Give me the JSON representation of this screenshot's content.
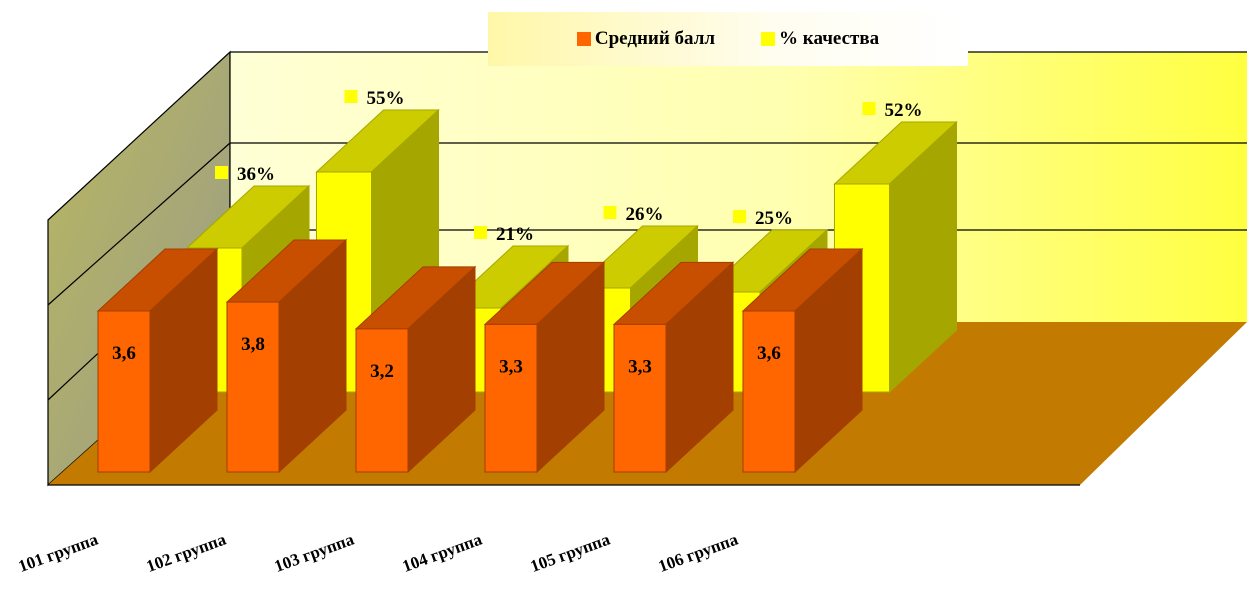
{
  "chart_data": {
    "type": "bar",
    "style": "3d-clustered",
    "categories": [
      "101 группа",
      "102 группа",
      "103 группа",
      "104 группа",
      "105 группа",
      "106 группа"
    ],
    "series": [
      {
        "name": "Средний балл",
        "values": [
          3.6,
          3.8,
          3.2,
          3.3,
          3.3,
          3.6
        ],
        "labels": [
          "3,6",
          "3,8",
          "3,2",
          "3,3",
          "3,3",
          "3,6"
        ],
        "color": "#ff6600"
      },
      {
        "name": "% качества",
        "values": [
          36,
          55,
          21,
          26,
          25,
          52
        ],
        "labels": [
          "36%",
          "55%",
          "21%",
          "26%",
          "25%",
          "52%"
        ],
        "color": "#ffff00"
      }
    ],
    "legend_position": "top",
    "grid": true,
    "title": "",
    "xlabel": "",
    "ylabel": ""
  },
  "colors": {
    "orange_front": "#ff6600",
    "orange_top": "#c84e00",
    "orange_side": "#a33f00",
    "yellow_front": "#ffff00",
    "yellow_top": "#cccc00",
    "yellow_side": "#a6a600",
    "floor": "#c27a00",
    "back_wall_left": "#ffffb0",
    "side_wall": "#a0a040"
  }
}
